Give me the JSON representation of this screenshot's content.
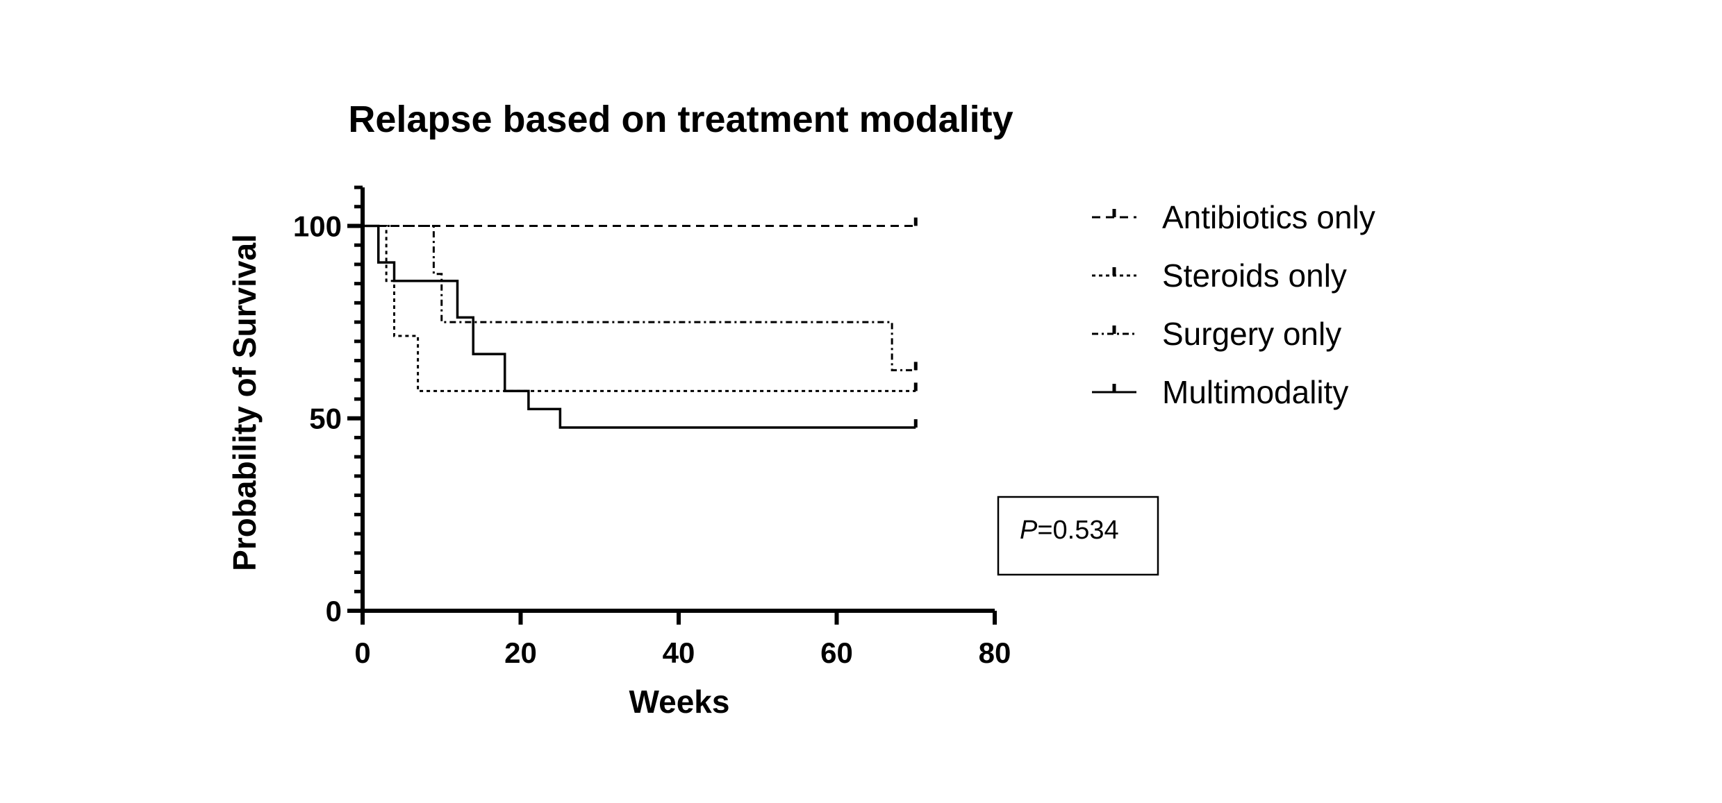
{
  "chart_data": {
    "type": "line",
    "subtype": "kaplan-meier-step",
    "title": "Relapse based on treatment modality",
    "xlabel": "Weeks",
    "ylabel": "Probability of Survival",
    "xlim": [
      0,
      80
    ],
    "ylim": [
      0,
      110
    ],
    "xticks": [
      0,
      20,
      40,
      60,
      80
    ],
    "yticks": [
      0,
      50,
      100
    ],
    "grid": false,
    "legend_position": "right",
    "series": [
      {
        "name": "Antibiotics only",
        "style": "dashed",
        "color": "#000000",
        "steps": [
          [
            0,
            100
          ],
          [
            70,
            100
          ]
        ],
        "censor_x": [
          70
        ]
      },
      {
        "name": "Steroids only",
        "style": "dotted",
        "color": "#000000",
        "steps": [
          [
            0,
            100
          ],
          [
            3,
            85.7
          ],
          [
            4,
            71.4
          ],
          [
            7,
            57.1
          ],
          [
            70,
            57.1
          ]
        ],
        "censor_x": [
          70
        ]
      },
      {
        "name": "Surgery only",
        "style": "dash-dot",
        "color": "#000000",
        "steps": [
          [
            0,
            100
          ],
          [
            9,
            87.5
          ],
          [
            10,
            75
          ],
          [
            67,
            62.5
          ],
          [
            70,
            62.5
          ]
        ],
        "censor_x": [
          70
        ]
      },
      {
        "name": "Multimodality",
        "style": "solid",
        "color": "#000000",
        "steps": [
          [
            0,
            100
          ],
          [
            2,
            90.5
          ],
          [
            4,
            85.7
          ],
          [
            12,
            76.2
          ],
          [
            14,
            66.7
          ],
          [
            18,
            57.1
          ],
          [
            21,
            52.4
          ],
          [
            25,
            47.6
          ],
          [
            70,
            47.6
          ]
        ],
        "censor_x": [
          70
        ]
      }
    ],
    "annotation": {
      "p_label": "P",
      "p_value": "=0.534"
    }
  }
}
